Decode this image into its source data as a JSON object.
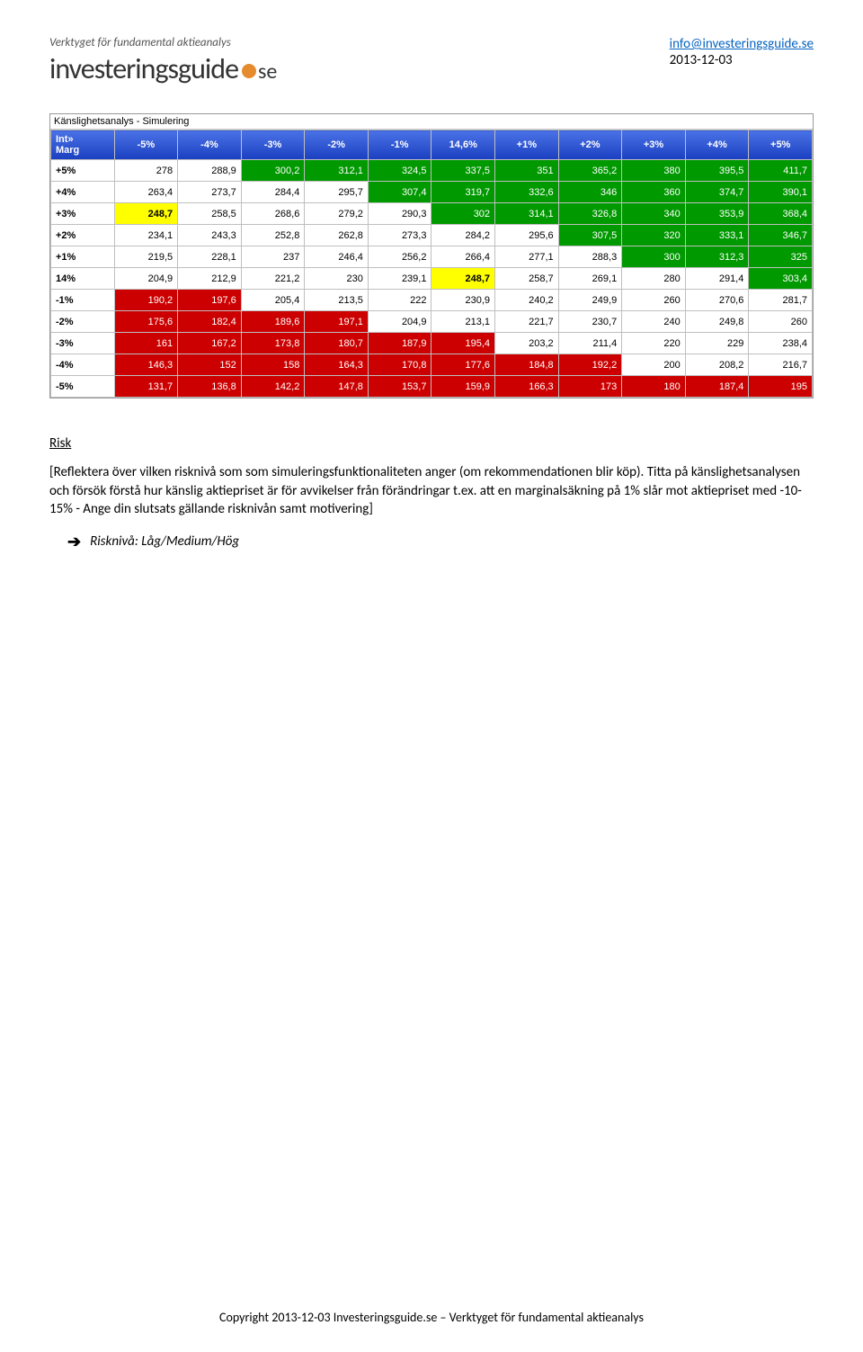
{
  "header": {
    "tagline": "Verktyget för fundamental aktieanalys",
    "logo_main": "investeringsguide",
    "logo_suffix": "se",
    "email": "info@investeringsguide.se",
    "date": "2013-12-03"
  },
  "sensitivity_table": {
    "title": "Känslighetsanalys - Simulering",
    "corner_label": "Int»\nMarg",
    "col_headers": [
      "-5%",
      "-4%",
      "-3%",
      "-2%",
      "-1%",
      "14,6%",
      "+1%",
      "+2%",
      "+3%",
      "+4%",
      "+5%"
    ],
    "row_headers": [
      "+5%",
      "+4%",
      "+3%",
      "+2%",
      "+1%",
      "14%",
      "-1%",
      "-2%",
      "-3%",
      "-4%",
      "-5%"
    ],
    "rows": [
      [
        {
          "v": "278",
          "c": "white"
        },
        {
          "v": "288,9",
          "c": "white"
        },
        {
          "v": "300,2",
          "c": "green"
        },
        {
          "v": "312,1",
          "c": "green"
        },
        {
          "v": "324,5",
          "c": "green"
        },
        {
          "v": "337,5",
          "c": "green"
        },
        {
          "v": "351",
          "c": "green"
        },
        {
          "v": "365,2",
          "c": "green"
        },
        {
          "v": "380",
          "c": "green"
        },
        {
          "v": "395,5",
          "c": "green"
        },
        {
          "v": "411,7",
          "c": "green"
        }
      ],
      [
        {
          "v": "263,4",
          "c": "white"
        },
        {
          "v": "273,7",
          "c": "white"
        },
        {
          "v": "284,4",
          "c": "white"
        },
        {
          "v": "295,7",
          "c": "white"
        },
        {
          "v": "307,4",
          "c": "green"
        },
        {
          "v": "319,7",
          "c": "green"
        },
        {
          "v": "332,6",
          "c": "green"
        },
        {
          "v": "346",
          "c": "green"
        },
        {
          "v": "360",
          "c": "green"
        },
        {
          "v": "374,7",
          "c": "green"
        },
        {
          "v": "390,1",
          "c": "green"
        }
      ],
      [
        {
          "v": "248,7",
          "c": "yellow"
        },
        {
          "v": "258,5",
          "c": "white"
        },
        {
          "v": "268,6",
          "c": "white"
        },
        {
          "v": "279,2",
          "c": "white"
        },
        {
          "v": "290,3",
          "c": "white"
        },
        {
          "v": "302",
          "c": "green"
        },
        {
          "v": "314,1",
          "c": "green"
        },
        {
          "v": "326,8",
          "c": "green"
        },
        {
          "v": "340",
          "c": "green"
        },
        {
          "v": "353,9",
          "c": "green"
        },
        {
          "v": "368,4",
          "c": "green"
        }
      ],
      [
        {
          "v": "234,1",
          "c": "white"
        },
        {
          "v": "243,3",
          "c": "white"
        },
        {
          "v": "252,8",
          "c": "white"
        },
        {
          "v": "262,8",
          "c": "white"
        },
        {
          "v": "273,3",
          "c": "white"
        },
        {
          "v": "284,2",
          "c": "white"
        },
        {
          "v": "295,6",
          "c": "white"
        },
        {
          "v": "307,5",
          "c": "green"
        },
        {
          "v": "320",
          "c": "green"
        },
        {
          "v": "333,1",
          "c": "green"
        },
        {
          "v": "346,7",
          "c": "green"
        }
      ],
      [
        {
          "v": "219,5",
          "c": "white"
        },
        {
          "v": "228,1",
          "c": "white"
        },
        {
          "v": "237",
          "c": "white"
        },
        {
          "v": "246,4",
          "c": "white"
        },
        {
          "v": "256,2",
          "c": "white"
        },
        {
          "v": "266,4",
          "c": "white"
        },
        {
          "v": "277,1",
          "c": "white"
        },
        {
          "v": "288,3",
          "c": "white"
        },
        {
          "v": "300",
          "c": "green"
        },
        {
          "v": "312,3",
          "c": "green"
        },
        {
          "v": "325",
          "c": "green"
        }
      ],
      [
        {
          "v": "204,9",
          "c": "white"
        },
        {
          "v": "212,9",
          "c": "white"
        },
        {
          "v": "221,2",
          "c": "white"
        },
        {
          "v": "230",
          "c": "white"
        },
        {
          "v": "239,1",
          "c": "white"
        },
        {
          "v": "248,7",
          "c": "yellow"
        },
        {
          "v": "258,7",
          "c": "white"
        },
        {
          "v": "269,1",
          "c": "white"
        },
        {
          "v": "280",
          "c": "white"
        },
        {
          "v": "291,4",
          "c": "white"
        },
        {
          "v": "303,4",
          "c": "green"
        }
      ],
      [
        {
          "v": "190,2",
          "c": "red"
        },
        {
          "v": "197,6",
          "c": "red"
        },
        {
          "v": "205,4",
          "c": "white"
        },
        {
          "v": "213,5",
          "c": "white"
        },
        {
          "v": "222",
          "c": "white"
        },
        {
          "v": "230,9",
          "c": "white"
        },
        {
          "v": "240,2",
          "c": "white"
        },
        {
          "v": "249,9",
          "c": "white"
        },
        {
          "v": "260",
          "c": "white"
        },
        {
          "v": "270,6",
          "c": "white"
        },
        {
          "v": "281,7",
          "c": "white"
        }
      ],
      [
        {
          "v": "175,6",
          "c": "red"
        },
        {
          "v": "182,4",
          "c": "red"
        },
        {
          "v": "189,6",
          "c": "red"
        },
        {
          "v": "197,1",
          "c": "red"
        },
        {
          "v": "204,9",
          "c": "white"
        },
        {
          "v": "213,1",
          "c": "white"
        },
        {
          "v": "221,7",
          "c": "white"
        },
        {
          "v": "230,7",
          "c": "white"
        },
        {
          "v": "240",
          "c": "white"
        },
        {
          "v": "249,8",
          "c": "white"
        },
        {
          "v": "260",
          "c": "white"
        }
      ],
      [
        {
          "v": "161",
          "c": "red"
        },
        {
          "v": "167,2",
          "c": "red"
        },
        {
          "v": "173,8",
          "c": "red"
        },
        {
          "v": "180,7",
          "c": "red"
        },
        {
          "v": "187,9",
          "c": "red"
        },
        {
          "v": "195,4",
          "c": "red"
        },
        {
          "v": "203,2",
          "c": "white"
        },
        {
          "v": "211,4",
          "c": "white"
        },
        {
          "v": "220",
          "c": "white"
        },
        {
          "v": "229",
          "c": "white"
        },
        {
          "v": "238,4",
          "c": "white"
        }
      ],
      [
        {
          "v": "146,3",
          "c": "red"
        },
        {
          "v": "152",
          "c": "red"
        },
        {
          "v": "158",
          "c": "red"
        },
        {
          "v": "164,3",
          "c": "red"
        },
        {
          "v": "170,8",
          "c": "red"
        },
        {
          "v": "177,6",
          "c": "red"
        },
        {
          "v": "184,8",
          "c": "red"
        },
        {
          "v": "192,2",
          "c": "red"
        },
        {
          "v": "200",
          "c": "white"
        },
        {
          "v": "208,2",
          "c": "white"
        },
        {
          "v": "216,7",
          "c": "white"
        }
      ],
      [
        {
          "v": "131,7",
          "c": "red"
        },
        {
          "v": "136,8",
          "c": "red"
        },
        {
          "v": "142,2",
          "c": "red"
        },
        {
          "v": "147,8",
          "c": "red"
        },
        {
          "v": "153,7",
          "c": "red"
        },
        {
          "v": "159,9",
          "c": "red"
        },
        {
          "v": "166,3",
          "c": "red"
        },
        {
          "v": "173",
          "c": "red"
        },
        {
          "v": "180",
          "c": "red"
        },
        {
          "v": "187,4",
          "c": "red"
        },
        {
          "v": "195",
          "c": "red"
        }
      ]
    ],
    "colors": {
      "white": "#ffffff",
      "yellow": "#ffff00",
      "green": "#009900",
      "red": "#cc0000"
    }
  },
  "body": {
    "heading": "Risk",
    "paragraph": "[Reflektera över vilken risknivå som som simuleringsfunktionaliteten anger (om rekommendationen blir köp). Titta på känslighetsanalysen och försök förstå hur känslig aktiepriset är för avvikelser från förändringar t.ex. att en marginalsäkning på 1% slår mot aktiepriset med -10-15% - Ange din slutsats gällande risknivån samt motivering]",
    "bullet": "Risknivå: Låg/Medium/Hög"
  },
  "footer": {
    "text": "Copyright 2013-12-03 Investeringsguide.se – Verktyget för fundamental aktieanalys"
  }
}
